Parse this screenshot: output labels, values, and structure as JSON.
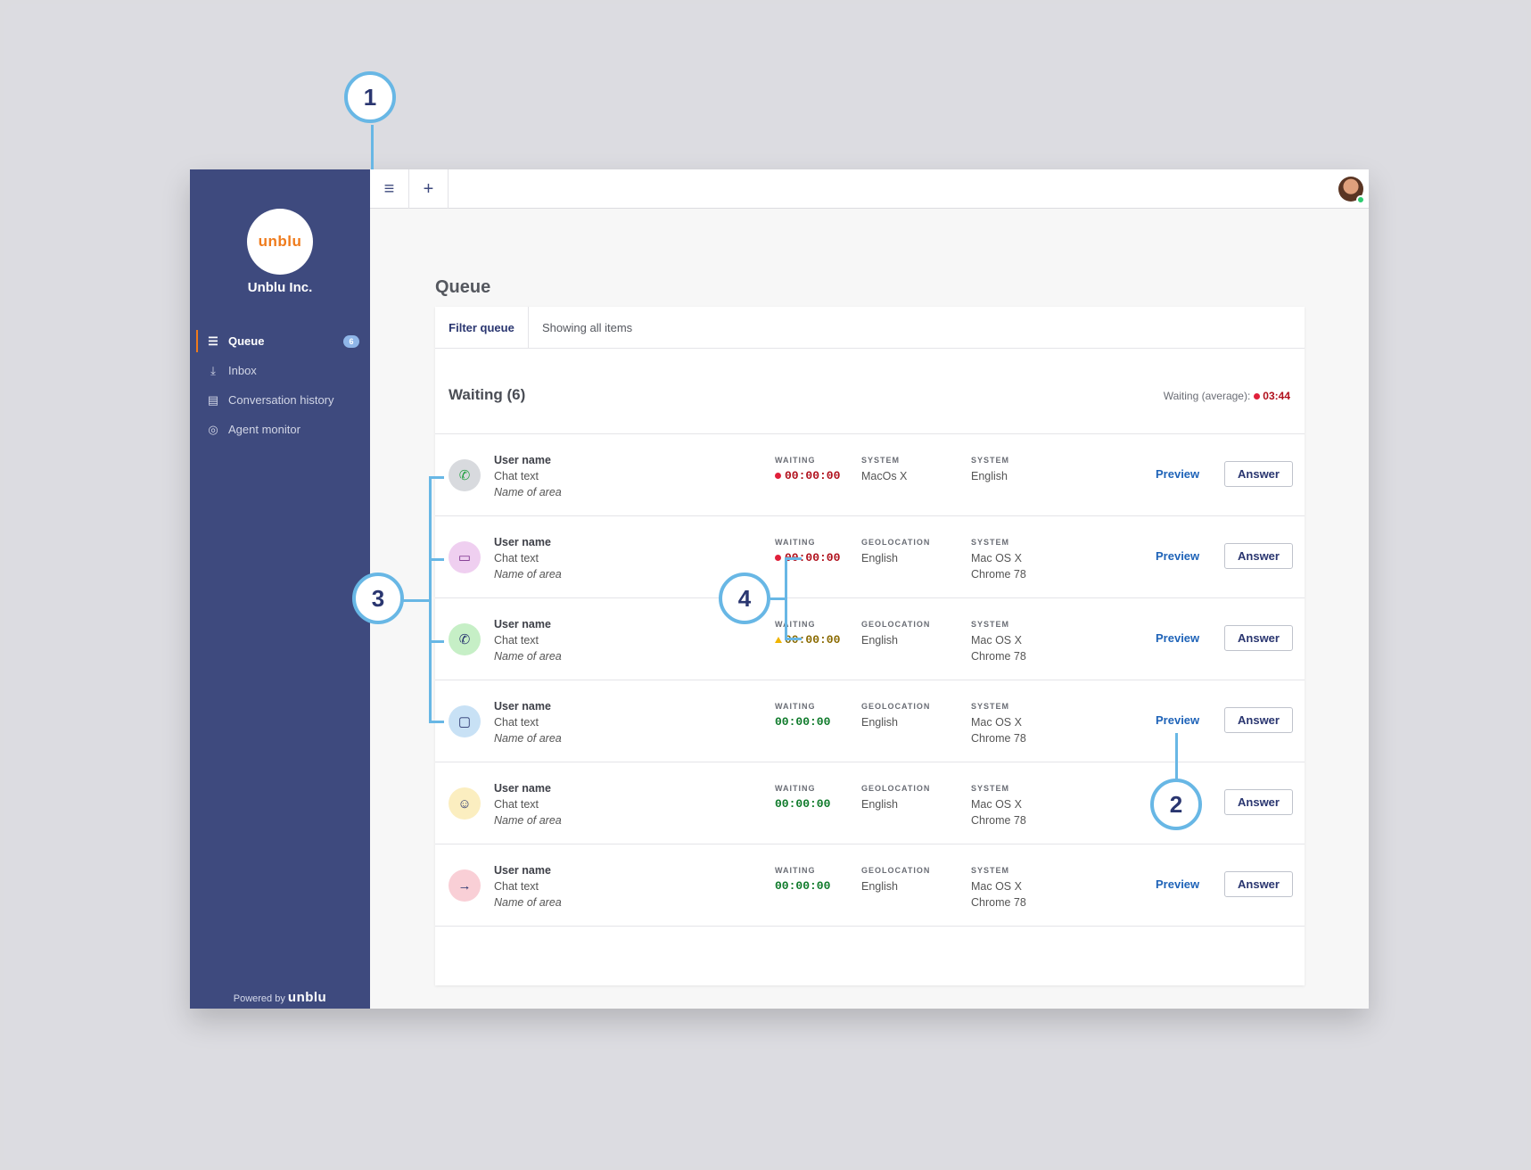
{
  "sidebar": {
    "logo_text": "unblu",
    "org_name": "Unblu Inc.",
    "items": [
      {
        "label": "Queue",
        "icon": "☰",
        "badge": "6",
        "active": true
      },
      {
        "label": "Inbox",
        "icon": "⤓"
      },
      {
        "label": "Conversation history",
        "icon": "▤"
      },
      {
        "label": "Agent monitor",
        "icon": "◎"
      }
    ],
    "powered_label": "Powered by",
    "powered_brand": "unblu"
  },
  "topbar": {
    "menu_icon": "≡",
    "add_icon": "+"
  },
  "page": {
    "title": "Queue"
  },
  "filter": {
    "tab_label": "Filter queue",
    "status": "Showing all items"
  },
  "waiting": {
    "title": "Waiting (6)",
    "avg_label": "Waiting (average):",
    "avg_value": "03:44"
  },
  "actions": {
    "preview": "Preview",
    "answer": "Answer"
  },
  "rows": [
    {
      "icon": "whatsapp-icon",
      "glyph": "✆",
      "icon_bg": "#d8dade",
      "icon_color": "#25a244",
      "name": "User name",
      "text": "Chat text",
      "area": "Name of area",
      "waiting_label": "WAITING",
      "waiting": "00:00:00",
      "status": "red",
      "col2_label": "SYSTEM",
      "col2": "MacOs X",
      "col3_label": "SYSTEM",
      "col3a": "English",
      "col3b": "",
      "preview": true
    },
    {
      "icon": "chat-icon",
      "glyph": "▭",
      "icon_bg": "#efcff0",
      "icon_color": "#7a2f8a",
      "name": "User name",
      "text": "Chat text",
      "area": "Name of area",
      "waiting_label": "WAITING",
      "waiting": "00:00:00",
      "status": "red",
      "col2_label": "GEOLOCATION",
      "col2": "English",
      "col3_label": "SYSTEM",
      "col3a": "Mac OS X",
      "col3b": "Chrome 78",
      "preview": true
    },
    {
      "icon": "phone-icon",
      "glyph": "✆",
      "icon_bg": "#c6efc6",
      "icon_color": "#2a3670",
      "name": "User name",
      "text": "Chat text",
      "area": "Name of area",
      "waiting_label": "WAITING",
      "waiting": "00:00:00",
      "status": "amber",
      "col2_label": "GEOLOCATION",
      "col2": "English",
      "col3_label": "SYSTEM",
      "col3a": "Mac OS X",
      "col3b": "Chrome 78",
      "preview": true
    },
    {
      "icon": "video-icon",
      "glyph": "▢",
      "icon_bg": "#c8e1f5",
      "icon_color": "#2a3670",
      "name": "User name",
      "text": "Chat text",
      "area": "Name of area",
      "waiting_label": "WAITING",
      "waiting": "00:00:00",
      "status": "green",
      "col2_label": "GEOLOCATION",
      "col2": "English",
      "col3_label": "SYSTEM",
      "col3a": "Mac OS X",
      "col3b": "Chrome 78",
      "preview": true
    },
    {
      "icon": "user-add-icon",
      "glyph": "☺",
      "icon_bg": "#fbeec0",
      "icon_color": "#2a3670",
      "name": "User name",
      "text": "Chat text",
      "area": "Name of area",
      "waiting_label": "WAITING",
      "waiting": "00:00:00",
      "status": "green",
      "col2_label": "GEOLOCATION",
      "col2": "English",
      "col3_label": "SYSTEM",
      "col3a": "Mac OS X",
      "col3b": "Chrome 78",
      "preview": false
    },
    {
      "icon": "forward-icon",
      "glyph": "→",
      "icon_bg": "#f9cfd6",
      "icon_color": "#2a3670",
      "name": "User name",
      "text": "Chat text",
      "area": "Name of area",
      "waiting_label": "WAITING",
      "waiting": "00:00:00",
      "status": "green",
      "col2_label": "GEOLOCATION",
      "col2": "English",
      "col3_label": "SYSTEM",
      "col3a": "Mac OS X",
      "col3b": "Chrome 78",
      "preview": true
    }
  ],
  "callouts": {
    "c1": "1",
    "c2": "2",
    "c3": "3",
    "c4": "4"
  }
}
